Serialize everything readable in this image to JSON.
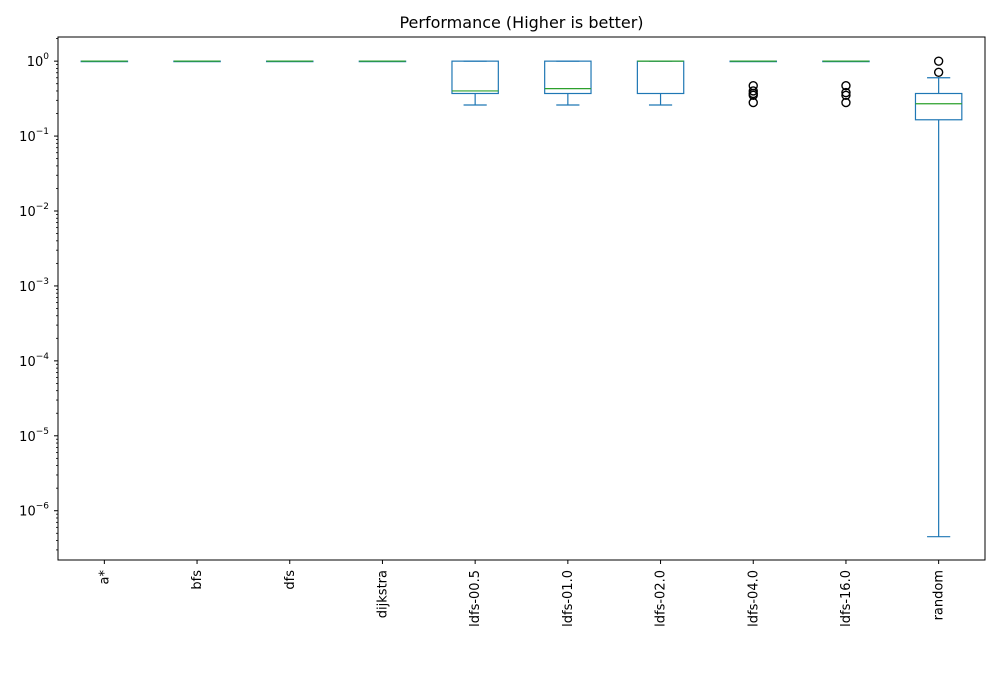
{
  "chart_data": {
    "type": "box",
    "title": "Performance (Higher is better)",
    "xlabel": "",
    "ylabel": "",
    "y_scale": "log",
    "ylim": [
      2.2e-07,
      2.1
    ],
    "y_ticks": [
      {
        "value": 1,
        "base": "10",
        "exp": "0"
      },
      {
        "value": 0.1,
        "base": "10",
        "exp": "−1"
      },
      {
        "value": 0.01,
        "base": "10",
        "exp": "−2"
      },
      {
        "value": 0.001,
        "base": "10",
        "exp": "−3"
      },
      {
        "value": 0.0001,
        "base": "10",
        "exp": "−4"
      },
      {
        "value": 1e-05,
        "base": "10",
        "exp": "−5"
      },
      {
        "value": 1e-06,
        "base": "10",
        "exp": "−6"
      }
    ],
    "grid": false,
    "legend": "none",
    "colors": {
      "box": "#1f77b4",
      "median": "#2ca02c",
      "outlier": "#000000"
    },
    "categories": [
      "a*",
      "bfs",
      "dfs",
      "dijkstra",
      "ldfs-00.5",
      "ldfs-01.0",
      "ldfs-02.0",
      "ldfs-04.0",
      "ldfs-16.0",
      "random"
    ],
    "boxes": [
      {
        "whisker_low": 1.0,
        "q1": 1.0,
        "median": 1.0,
        "q3": 1.0,
        "whisker_high": 1.0,
        "outliers": []
      },
      {
        "whisker_low": 1.0,
        "q1": 1.0,
        "median": 1.0,
        "q3": 1.0,
        "whisker_high": 1.0,
        "outliers": []
      },
      {
        "whisker_low": 1.0,
        "q1": 1.0,
        "median": 1.0,
        "q3": 1.0,
        "whisker_high": 1.0,
        "outliers": []
      },
      {
        "whisker_low": 1.0,
        "q1": 1.0,
        "median": 1.0,
        "q3": 1.0,
        "whisker_high": 1.0,
        "outliers": []
      },
      {
        "whisker_low": 0.26,
        "q1": 0.37,
        "median": 0.4,
        "q3": 1.0,
        "whisker_high": 1.0,
        "outliers": []
      },
      {
        "whisker_low": 0.26,
        "q1": 0.37,
        "median": 0.43,
        "q3": 1.0,
        "whisker_high": 1.0,
        "outliers": []
      },
      {
        "whisker_low": 0.26,
        "q1": 0.37,
        "median": 1.0,
        "q3": 1.0,
        "whisker_high": 1.0,
        "outliers": []
      },
      {
        "whisker_low": 1.0,
        "q1": 1.0,
        "median": 1.0,
        "q3": 1.0,
        "whisker_high": 1.0,
        "outliers": [
          0.47,
          0.4,
          0.37,
          0.35,
          0.28
        ]
      },
      {
        "whisker_low": 1.0,
        "q1": 1.0,
        "median": 1.0,
        "q3": 1.0,
        "whisker_high": 1.0,
        "outliers": [
          0.47,
          0.38,
          0.35,
          0.28
        ]
      },
      {
        "whisker_low": 4.5e-07,
        "q1": 0.165,
        "median": 0.27,
        "q3": 0.37,
        "whisker_high": 0.6,
        "outliers": [
          1.0,
          0.71
        ]
      }
    ]
  }
}
